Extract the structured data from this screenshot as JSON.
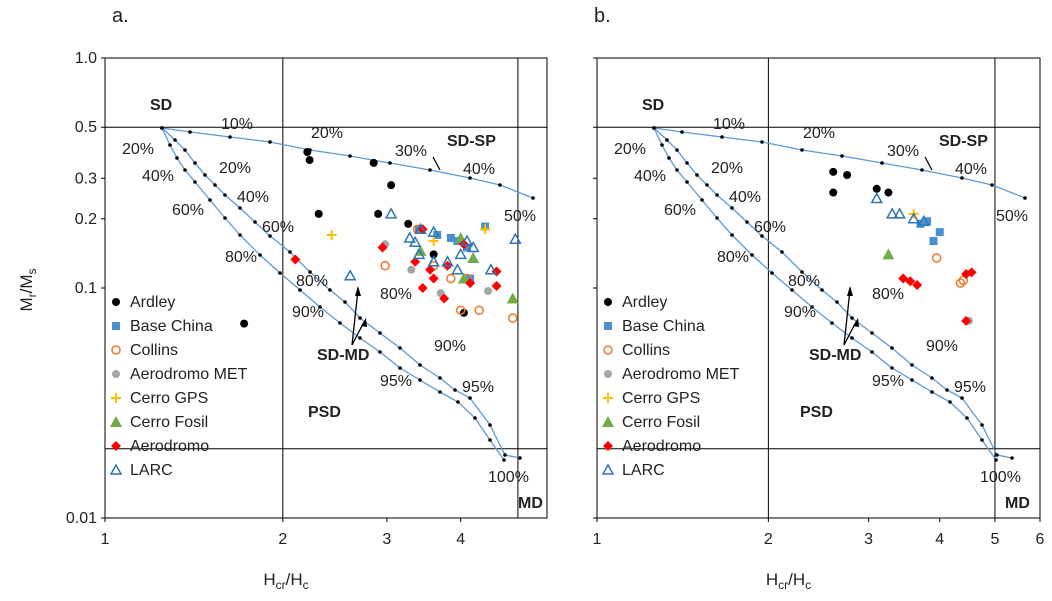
{
  "chart_data": [
    {
      "panel": "a.",
      "type": "scatter",
      "x_log": true,
      "y_log": true,
      "xlim": [
        1,
        5.6
      ],
      "ylim": [
        0.01,
        1.0
      ],
      "xticks": [
        1,
        2,
        3,
        4
      ],
      "xtick_labels": [
        "1",
        "2",
        "3",
        "4"
      ],
      "yticks": [
        1.0,
        0.5,
        0.3,
        0.2,
        0.1,
        0.01
      ],
      "ytick_labels": [
        "1.0",
        "0.5",
        "0.3",
        "0.2",
        "0.1",
        "0.01"
      ],
      "xlabel": [
        "H",
        "cr",
        "/H",
        "c"
      ],
      "ylabel": [
        "M",
        "r",
        "/M",
        "s"
      ],
      "series": [
        {
          "name": "Ardley",
          "marker": "circle",
          "color": "#000000",
          "points": [
            [
              1.72,
              0.07
            ],
            [
              2.2,
              0.39
            ],
            [
              2.22,
              0.36
            ],
            [
              2.3,
              0.21
            ],
            [
              2.85,
              0.35
            ],
            [
              2.9,
              0.21
            ],
            [
              3.05,
              0.28
            ],
            [
              3.26,
              0.19
            ],
            [
              3.6,
              0.14
            ],
            [
              4.05,
              0.078
            ],
            [
              4.1,
              0.15
            ]
          ]
        },
        {
          "name": "Base China",
          "marker": "square",
          "color": "#4a8fd0",
          "points": [
            [
              3.4,
              0.18
            ],
            [
              3.65,
              0.17
            ],
            [
              3.85,
              0.165
            ],
            [
              3.95,
              0.16
            ],
            [
              4.1,
              0.15
            ],
            [
              4.4,
              0.185
            ],
            [
              4.15,
              0.11
            ]
          ]
        },
        {
          "name": "Collins",
          "marker": "circle-open",
          "color": "#ed7d31",
          "points": [
            [
              2.98,
              0.125
            ],
            [
              3.38,
              0.18
            ],
            [
              3.6,
              0.125
            ],
            [
              3.85,
              0.11
            ],
            [
              4.0,
              0.08
            ],
            [
              4.1,
              0.11
            ],
            [
              4.3,
              0.08
            ],
            [
              4.9,
              0.074
            ]
          ]
        },
        {
          "name": "Aerodromo MET",
          "marker": "circle",
          "color": "#a5a5a5",
          "points": [
            [
              2.98,
              0.155
            ],
            [
              3.7,
              0.095
            ],
            [
              4.45,
              0.097
            ],
            [
              3.3,
              0.12
            ]
          ]
        },
        {
          "name": "Cerro GPS",
          "marker": "plus",
          "color": "#ffc000",
          "points": [
            [
              2.42,
              0.17
            ],
            [
              3.6,
              0.16
            ],
            [
              4.4,
              0.18
            ]
          ]
        },
        {
          "name": "Cerro Fosil",
          "marker": "triangle",
          "color": "#70ad47",
          "points": [
            [
              3.42,
              0.145
            ],
            [
              4.0,
              0.165
            ],
            [
              4.2,
              0.135
            ],
            [
              4.9,
              0.09
            ],
            [
              4.05,
              0.11
            ]
          ]
        },
        {
          "name": "Aerodromo",
          "marker": "diamond",
          "color": "#ff0000",
          "points": [
            [
              2.1,
              0.133
            ],
            [
              2.95,
              0.15
            ],
            [
              3.35,
              0.13
            ],
            [
              3.45,
              0.1
            ],
            [
              3.55,
              0.12
            ],
            [
              3.6,
              0.11
            ],
            [
              3.75,
              0.09
            ],
            [
              3.8,
              0.125
            ],
            [
              4.05,
              0.155
            ],
            [
              4.15,
              0.105
            ],
            [
              4.6,
              0.118
            ],
            [
              4.6,
              0.102
            ],
            [
              3.45,
              0.18
            ]
          ]
        },
        {
          "name": "LARC",
          "marker": "triangle-open",
          "color": "#2e75b6",
          "points": [
            [
              2.6,
              0.113
            ],
            [
              3.05,
              0.21
            ],
            [
              3.28,
              0.165
            ],
            [
              3.35,
              0.158
            ],
            [
              3.4,
              0.14
            ],
            [
              3.42,
              0.18
            ],
            [
              3.6,
              0.175
            ],
            [
              3.6,
              0.13
            ],
            [
              3.8,
              0.13
            ],
            [
              3.95,
              0.12
            ],
            [
              4.0,
              0.14
            ],
            [
              4.2,
              0.15
            ],
            [
              4.5,
              0.12
            ],
            [
              4.95,
              0.163
            ],
            [
              4.1,
              0.16
            ]
          ]
        }
      ],
      "regions": [
        "SD",
        "SD-SP",
        "SD-MD",
        "PSD",
        "MD"
      ],
      "curve_labels": [
        "10%",
        "20%",
        "30%",
        "40%",
        "50%",
        "20%",
        "40%",
        "60%",
        "80%",
        "20%",
        "40%",
        "60%",
        "80%",
        "90%",
        "80%",
        "90%",
        "95%",
        "95%",
        "100%"
      ]
    },
    {
      "panel": "b.",
      "type": "scatter",
      "x_log": true,
      "y_log": true,
      "xlim": [
        1,
        6.0
      ],
      "ylim": [
        0.01,
        1.0
      ],
      "xticks": [
        1,
        2,
        3,
        4,
        5,
        6
      ],
      "xtick_labels": [
        "1",
        "2",
        "3",
        "4",
        "5",
        "6"
      ],
      "yticks": [
        1.0,
        0.5,
        0.3,
        0.2,
        0.1,
        0.01
      ],
      "ytick_labels": [
        "",
        "",
        "",
        "",
        "",
        ""
      ],
      "xlabel": [
        "H",
        "cr",
        "/H",
        "c"
      ],
      "series": [
        {
          "name": "Ardley",
          "marker": "circle",
          "color": "#000000",
          "points": [
            [
              2.6,
              0.32
            ],
            [
              2.6,
              0.26
            ],
            [
              2.75,
              0.31
            ],
            [
              3.1,
              0.27
            ],
            [
              3.25,
              0.26
            ]
          ]
        },
        {
          "name": "Base China",
          "marker": "square",
          "color": "#4a8fd0",
          "points": [
            [
              3.8,
              0.195
            ],
            [
              3.9,
              0.16
            ],
            [
              4.0,
              0.175
            ],
            [
              3.7,
              0.19
            ]
          ]
        },
        {
          "name": "Collins",
          "marker": "circle-open",
          "color": "#ed7d31",
          "points": [
            [
              3.95,
              0.135
            ],
            [
              4.35,
              0.105
            ],
            [
              4.4,
              0.108
            ]
          ]
        },
        {
          "name": "Aerodromo MET",
          "marker": "circle",
          "color": "#a5a5a5",
          "points": [
            [
              4.5,
              0.072
            ]
          ]
        },
        {
          "name": "Cerro GPS",
          "marker": "plus",
          "color": "#ffc000",
          "points": [
            [
              3.6,
              0.21
            ]
          ]
        },
        {
          "name": "Cerro Fosil",
          "marker": "triangle",
          "color": "#70ad47",
          "points": [
            [
              3.25,
              0.14
            ]
          ]
        },
        {
          "name": "Aerodromo",
          "marker": "diamond",
          "color": "#ff0000",
          "points": [
            [
              3.45,
              0.11
            ],
            [
              3.55,
              0.107
            ],
            [
              3.65,
              0.103
            ],
            [
              4.45,
              0.115
            ],
            [
              4.55,
              0.117
            ],
            [
              4.45,
              0.072
            ]
          ]
        },
        {
          "name": "LARC",
          "marker": "triangle-open",
          "color": "#2e75b6",
          "points": [
            [
              3.1,
              0.245
            ],
            [
              3.3,
              0.21
            ],
            [
              3.4,
              0.21
            ],
            [
              3.6,
              0.2
            ],
            [
              3.75,
              0.195
            ]
          ]
        }
      ],
      "regions": [
        "SD",
        "SD-SP",
        "SD-MD",
        "PSD",
        "MD"
      ],
      "curve_labels": [
        "10%",
        "20%",
        "30%",
        "40%",
        "50%",
        "20%",
        "40%",
        "60%",
        "80%",
        "20%",
        "40%",
        "60%",
        "80%",
        "90%",
        "80%",
        "90%",
        "95%",
        "95%",
        "100%"
      ]
    }
  ]
}
